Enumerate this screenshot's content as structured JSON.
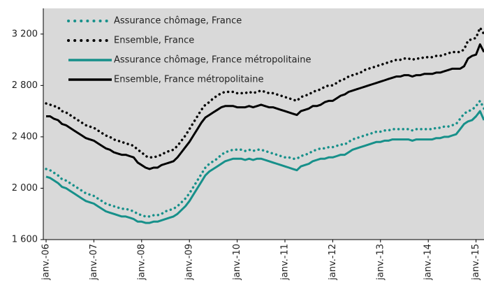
{
  "chart_data": {
    "type": "line",
    "categories": [
      "janv.-06",
      null,
      null,
      null,
      null,
      null,
      null,
      null,
      null,
      null,
      null,
      null,
      "janv.-07",
      null,
      null,
      null,
      null,
      null,
      null,
      null,
      null,
      null,
      null,
      null,
      "janv.-08",
      null,
      null,
      null,
      null,
      null,
      null,
      null,
      null,
      null,
      null,
      null,
      "janv.-09",
      null,
      null,
      null,
      null,
      null,
      null,
      null,
      null,
      null,
      null,
      null,
      "janv.-10",
      null,
      null,
      null,
      null,
      null,
      null,
      null,
      null,
      null,
      null,
      null,
      "janv.-11",
      null,
      null,
      null,
      null,
      null,
      null,
      null,
      null,
      null,
      null,
      null,
      "janv.-12",
      null,
      null,
      null,
      null,
      null,
      null,
      null,
      null,
      null,
      null,
      null,
      "janv.-13",
      null,
      null,
      null,
      null,
      null,
      null,
      null,
      null,
      null,
      null,
      null,
      "janv.-14",
      null,
      null,
      null,
      null,
      null,
      null,
      null,
      null,
      null,
      null,
      null,
      "janv.-15",
      null,
      null
    ],
    "series": [
      {
        "name": "Assurance chômage, France",
        "color": "#17908a",
        "dashed": true,
        "values": [
          2150,
          2140,
          2120,
          2100,
          2070,
          2060,
          2040,
          2020,
          2000,
          1980,
          1960,
          1950,
          1940,
          1920,
          1900,
          1880,
          1870,
          1860,
          1850,
          1840,
          1840,
          1830,
          1820,
          1800,
          1790,
          1780,
          1780,
          1790,
          1790,
          1800,
          1820,
          1830,
          1840,
          1860,
          1890,
          1920,
          1960,
          2010,
          2060,
          2110,
          2160,
          2190,
          2210,
          2230,
          2260,
          2280,
          2290,
          2300,
          2300,
          2300,
          2290,
          2300,
          2290,
          2300,
          2300,
          2290,
          2280,
          2270,
          2260,
          2250,
          2240,
          2240,
          2230,
          2230,
          2250,
          2260,
          2270,
          2290,
          2300,
          2310,
          2310,
          2320,
          2320,
          2330,
          2340,
          2340,
          2360,
          2380,
          2390,
          2400,
          2410,
          2420,
          2430,
          2440,
          2440,
          2450,
          2450,
          2460,
          2460,
          2460,
          2460,
          2460,
          2450,
          2460,
          2460,
          2460,
          2460,
          2460,
          2470,
          2470,
          2480,
          2480,
          2490,
          2500,
          2540,
          2580,
          2600,
          2610,
          2640,
          2680,
          2620
        ]
      },
      {
        "name": "Ensemble, France",
        "color": "#000000",
        "dashed": true,
        "values": [
          2660,
          2650,
          2640,
          2630,
          2600,
          2590,
          2570,
          2550,
          2530,
          2510,
          2490,
          2480,
          2470,
          2450,
          2430,
          2410,
          2400,
          2380,
          2370,
          2360,
          2350,
          2340,
          2330,
          2300,
          2280,
          2250,
          2240,
          2240,
          2250,
          2260,
          2280,
          2290,
          2300,
          2330,
          2370,
          2410,
          2460,
          2510,
          2560,
          2610,
          2650,
          2670,
          2700,
          2720,
          2740,
          2750,
          2750,
          2750,
          2740,
          2740,
          2740,
          2750,
          2740,
          2750,
          2760,
          2750,
          2740,
          2740,
          2730,
          2720,
          2710,
          2700,
          2690,
          2680,
          2710,
          2720,
          2730,
          2750,
          2760,
          2770,
          2790,
          2800,
          2800,
          2820,
          2840,
          2850,
          2870,
          2880,
          2890,
          2900,
          2920,
          2930,
          2940,
          2950,
          2960,
          2970,
          2980,
          2990,
          3000,
          3000,
          3010,
          3010,
          3000,
          3010,
          3010,
          3020,
          3020,
          3020,
          3030,
          3030,
          3040,
          3050,
          3060,
          3060,
          3060,
          3080,
          3150,
          3160,
          3170,
          3250,
          3200
        ]
      },
      {
        "name": "Assurance chômage, France métropolitaine",
        "color": "#17908a",
        "dashed": false,
        "values": [
          2090,
          2080,
          2060,
          2040,
          2010,
          2000,
          1980,
          1960,
          1940,
          1920,
          1900,
          1890,
          1880,
          1860,
          1840,
          1820,
          1810,
          1800,
          1790,
          1780,
          1780,
          1770,
          1760,
          1740,
          1740,
          1730,
          1730,
          1740,
          1740,
          1750,
          1760,
          1770,
          1780,
          1800,
          1830,
          1860,
          1900,
          1950,
          2000,
          2050,
          2100,
          2130,
          2150,
          2170,
          2190,
          2210,
          2220,
          2230,
          2230,
          2230,
          2220,
          2230,
          2220,
          2230,
          2230,
          2220,
          2210,
          2200,
          2190,
          2180,
          2170,
          2160,
          2150,
          2140,
          2170,
          2180,
          2190,
          2210,
          2220,
          2230,
          2230,
          2240,
          2240,
          2250,
          2260,
          2260,
          2280,
          2300,
          2310,
          2320,
          2330,
          2340,
          2350,
          2360,
          2360,
          2370,
          2370,
          2380,
          2380,
          2380,
          2380,
          2380,
          2370,
          2380,
          2380,
          2380,
          2380,
          2380,
          2390,
          2390,
          2400,
          2400,
          2410,
          2420,
          2460,
          2500,
          2520,
          2530,
          2560,
          2600,
          2530
        ]
      },
      {
        "name": "Ensemble, France métropolitaine",
        "color": "#000000",
        "dashed": false,
        "values": [
          2560,
          2560,
          2540,
          2530,
          2500,
          2490,
          2470,
          2450,
          2430,
          2410,
          2390,
          2380,
          2370,
          2350,
          2330,
          2310,
          2300,
          2280,
          2270,
          2260,
          2260,
          2250,
          2240,
          2200,
          2180,
          2160,
          2150,
          2160,
          2160,
          2180,
          2190,
          2200,
          2210,
          2240,
          2280,
          2320,
          2360,
          2410,
          2460,
          2510,
          2550,
          2570,
          2590,
          2610,
          2630,
          2640,
          2640,
          2640,
          2630,
          2630,
          2630,
          2640,
          2630,
          2640,
          2650,
          2640,
          2630,
          2630,
          2620,
          2610,
          2600,
          2590,
          2580,
          2570,
          2600,
          2610,
          2620,
          2640,
          2640,
          2650,
          2670,
          2680,
          2680,
          2700,
          2720,
          2730,
          2750,
          2760,
          2770,
          2780,
          2790,
          2800,
          2810,
          2820,
          2830,
          2840,
          2850,
          2860,
          2870,
          2870,
          2880,
          2880,
          2870,
          2880,
          2880,
          2890,
          2890,
          2890,
          2900,
          2900,
          2910,
          2920,
          2930,
          2930,
          2930,
          2950,
          3010,
          3030,
          3040,
          3120,
          3060
        ]
      }
    ],
    "ylim": [
      1600,
      3400
    ],
    "yticks": [
      {
        "value": 1600,
        "label": "1 600"
      },
      {
        "value": 2000,
        "label": "2 000"
      },
      {
        "value": 2400,
        "label": "2 400"
      },
      {
        "value": 2800,
        "label": "2 800"
      },
      {
        "value": 3200,
        "label": "3 200"
      }
    ],
    "grid": false,
    "legend": "top-left"
  }
}
